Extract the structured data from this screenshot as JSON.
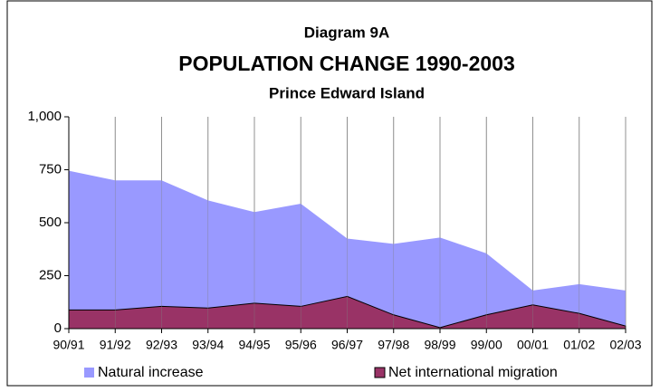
{
  "chart_data": {
    "type": "area",
    "label": "Diagram 9A",
    "title": "POPULATION CHANGE 1990-2003",
    "subtitle": "Prince Edward Island",
    "categories": [
      "90/91",
      "91/92",
      "92/93",
      "93/94",
      "94/95",
      "95/96",
      "96/97",
      "97/98",
      "98/99",
      "99/00",
      "00/01",
      "01/02",
      "02/03"
    ],
    "series": [
      {
        "name": "Natural increase",
        "color": "#9999ff",
        "values": [
          745,
          700,
          700,
          605,
          550,
          590,
          425,
          400,
          430,
          355,
          180,
          210,
          180
        ]
      },
      {
        "name": "Net international migration",
        "color": "#993366",
        "values": [
          88,
          88,
          105,
          97,
          120,
          105,
          152,
          65,
          5,
          65,
          112,
          72,
          12
        ]
      }
    ],
    "ylim": [
      0,
      1000
    ],
    "yticks": [
      0,
      250,
      500,
      750,
      {
        "value": 1000,
        "label": "1,000"
      }
    ],
    "xgrid": true,
    "legend": "bottom"
  }
}
